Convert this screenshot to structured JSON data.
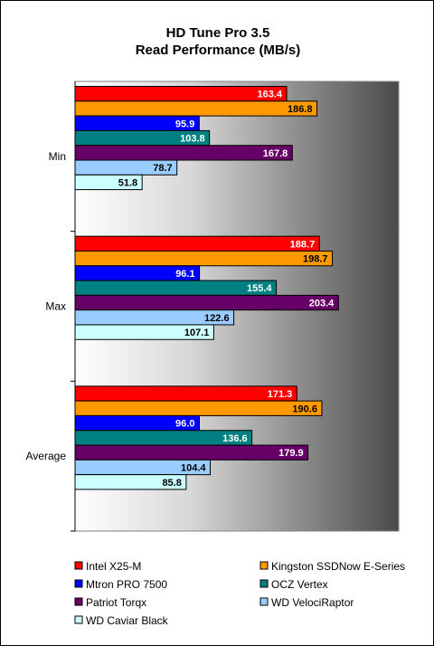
{
  "chart_data": {
    "type": "bar",
    "orientation": "horizontal",
    "title": "HD Tune Pro 3.5",
    "subtitle": "Read Performance (MB/s)",
    "categories": [
      "Min",
      "Max",
      "Average"
    ],
    "xlim": [
      0,
      250
    ],
    "grid": false,
    "legend_position": "bottom",
    "series": [
      {
        "name": "Intel X25-M",
        "color": "#ff0000",
        "label_color": "#ffffff",
        "values": [
          163.4,
          188.7,
          171.3
        ]
      },
      {
        "name": "Kingston SSDNow E-Series",
        "color": "#ff9900",
        "label_color": "#000000",
        "values": [
          186.8,
          198.7,
          190.6
        ]
      },
      {
        "name": "Mtron PRO 7500",
        "color": "#0000ff",
        "label_color": "#ffffff",
        "values": [
          95.9,
          96.1,
          96.0
        ]
      },
      {
        "name": "OCZ Vertex",
        "color": "#008080",
        "label_color": "#ffffff",
        "values": [
          103.8,
          155.4,
          136.6
        ]
      },
      {
        "name": "Patriot Torqx",
        "color": "#660066",
        "label_color": "#ffffff",
        "values": [
          167.8,
          203.4,
          179.9
        ]
      },
      {
        "name": "WD VelociRaptor",
        "color": "#99ccff",
        "label_color": "#000000",
        "values": [
          78.7,
          122.6,
          104.4
        ]
      },
      {
        "name": "WD Caviar Black",
        "color": "#ccffff",
        "label_color": "#000000",
        "values": [
          51.8,
          107.1,
          85.8
        ]
      }
    ]
  }
}
